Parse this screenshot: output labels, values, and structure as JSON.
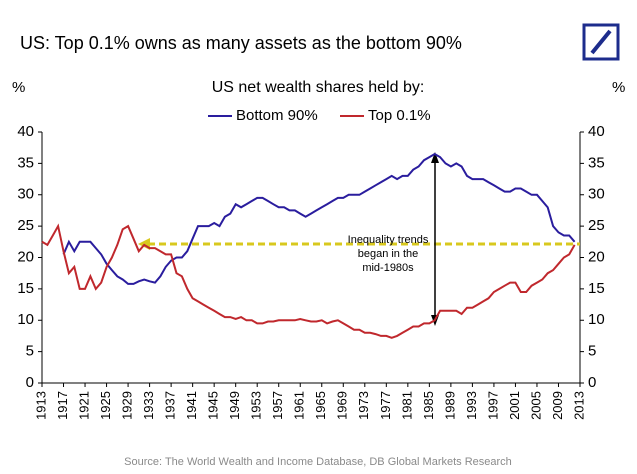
{
  "chart_data": {
    "type": "line",
    "title": "US: Top 0.1% owns as many assets as the bottom 90%",
    "subtitle": "US net wealth shares held by:",
    "y_label": "%",
    "y2_label": "%",
    "annotation": [
      "Inequality trends",
      "began in the",
      "mid-1980s"
    ],
    "source": "Source: The World Wealth and Income Database, DB Global Markets Research",
    "x": [
      1913,
      1914,
      1915,
      1916,
      1917,
      1918,
      1919,
      1920,
      1921,
      1922,
      1923,
      1924,
      1925,
      1926,
      1927,
      1928,
      1929,
      1930,
      1931,
      1932,
      1933,
      1934,
      1935,
      1936,
      1937,
      1938,
      1939,
      1940,
      1941,
      1942,
      1943,
      1944,
      1945,
      1946,
      1947,
      1948,
      1949,
      1950,
      1951,
      1952,
      1953,
      1954,
      1955,
      1956,
      1957,
      1958,
      1959,
      1960,
      1961,
      1962,
      1963,
      1964,
      1965,
      1966,
      1967,
      1968,
      1969,
      1970,
      1971,
      1972,
      1973,
      1974,
      1975,
      1976,
      1977,
      1978,
      1979,
      1980,
      1981,
      1982,
      1983,
      1984,
      1985,
      1986,
      1987,
      1988,
      1989,
      1990,
      1991,
      1992,
      1993,
      1994,
      1995,
      1996,
      1997,
      1998,
      1999,
      2000,
      2001,
      2002,
      2003,
      2004,
      2005,
      2006,
      2007,
      2008,
      2009,
      2010,
      2011,
      2012
    ],
    "series": [
      {
        "name": "Bottom 90%",
        "color": "#2a1d9e",
        "values": [
          null,
          null,
          null,
          null,
          20.5,
          22.5,
          21,
          22.5,
          22.5,
          22.5,
          21.5,
          20.5,
          19,
          18,
          17,
          16.5,
          15.8,
          15.8,
          16.2,
          16.5,
          16.2,
          16,
          17,
          18.5,
          19.5,
          20,
          20,
          21,
          23,
          25,
          25,
          25,
          25.5,
          25,
          26.5,
          27,
          28.5,
          28,
          28.5,
          29,
          29.5,
          29.5,
          29,
          28.5,
          28,
          28,
          27.5,
          27.5,
          27,
          26.5,
          27,
          27.5,
          28,
          28.5,
          29,
          29.5,
          29.5,
          30,
          30,
          30,
          30.5,
          31,
          31.5,
          32,
          32.5,
          33,
          32.5,
          33,
          33,
          34,
          34.5,
          35.5,
          36,
          36.5,
          36,
          35,
          34.5,
          35,
          34.5,
          33,
          32.5,
          32.5,
          32.5,
          32,
          31.5,
          31,
          30.5,
          30.5,
          31,
          31,
          30.5,
          30,
          30,
          29,
          28,
          25,
          24,
          23.5,
          23.5,
          22.5
        ]
      },
      {
        "name": "Top 0.1%",
        "color": "#c0282d",
        "values": [
          22.5,
          22,
          23.5,
          25,
          21,
          17.5,
          18.5,
          15,
          15,
          17,
          15,
          16,
          18.5,
          20,
          22,
          24.5,
          25,
          23,
          21,
          22,
          21.5,
          21.5,
          21,
          20.5,
          20.5,
          17.5,
          17,
          15,
          13.5,
          13,
          12.5,
          12,
          11.5,
          11,
          10.5,
          10.5,
          10.2,
          10.5,
          10,
          10,
          9.5,
          9.5,
          9.8,
          9.8,
          10,
          10,
          10,
          10,
          10.2,
          10,
          9.8,
          9.8,
          10,
          9.5,
          9.8,
          10,
          9.5,
          9,
          8.5,
          8.5,
          8,
          8,
          7.8,
          7.5,
          7.5,
          7.2,
          7.5,
          8,
          8.5,
          9,
          9,
          9.5,
          9.5,
          10,
          11.5,
          11.5,
          11.5,
          11.5,
          11,
          12,
          12,
          12.5,
          13,
          13.5,
          14.5,
          15,
          15.5,
          16,
          16,
          14.5,
          14.5,
          15.5,
          16,
          16.5,
          17.5,
          18,
          19,
          20,
          20.5,
          22
        ]
      }
    ],
    "xlim": [
      1913,
      2013
    ],
    "xticks": [
      1913,
      1917,
      1921,
      1925,
      1929,
      1933,
      1937,
      1941,
      1945,
      1949,
      1953,
      1957,
      1961,
      1965,
      1969,
      1973,
      1977,
      1981,
      1985,
      1989,
      1993,
      1997,
      2001,
      2005,
      2009,
      2013
    ],
    "ylim": [
      0,
      40
    ],
    "yticks": [
      0,
      5,
      10,
      15,
      20,
      25,
      30,
      35,
      40
    ],
    "y2lim": [
      0,
      40
    ],
    "y2ticks": [
      0,
      5,
      10,
      15,
      20,
      25,
      30,
      35,
      40
    ],
    "legend": "top"
  }
}
